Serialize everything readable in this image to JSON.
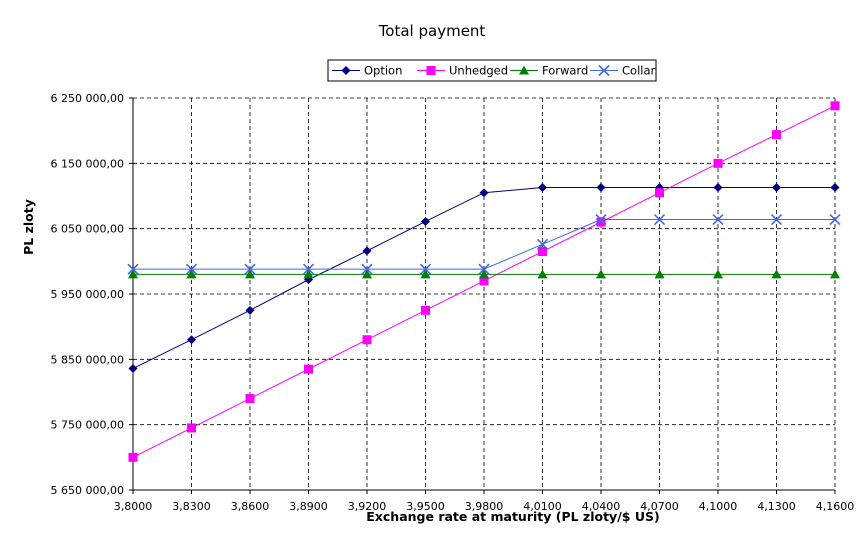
{
  "chart_data": {
    "type": "line",
    "title": "Total payment",
    "xlabel": "Exchange rate at maturity (PL zloty/$ US)",
    "ylabel": "PL zloty",
    "x": [
      "3,8000",
      "3,8300",
      "3,8600",
      "3,8900",
      "3,9200",
      "3,9500",
      "3,9800",
      "4,0100",
      "4,0400",
      "4,0700",
      "4,1000",
      "4,1300",
      "4,1600"
    ],
    "ylim": [
      5650000,
      6250000
    ],
    "yticks": [
      5650000,
      5750000,
      5850000,
      5950000,
      6050000,
      6150000,
      6250000
    ],
    "ytick_labels": [
      "5 650 000,00",
      "5 750 000,00",
      "5 850 000,00",
      "5 950 000,00",
      "6 050 000,00",
      "6 150 000,00",
      "6 250 000,00"
    ],
    "grid": true,
    "legend_position": "top-right",
    "series": [
      {
        "name": "Option",
        "color": "#000080",
        "marker": "diamond",
        "values": [
          5836000,
          5880000,
          5925000,
          5972000,
          6016000,
          6061000,
          6105000,
          6113000,
          6113000,
          6113000,
          6113000,
          6113000,
          6113000
        ]
      },
      {
        "name": "Unhedged",
        "color": "#ff00ff",
        "marker": "square",
        "values": [
          5700000,
          5745000,
          5790000,
          5835000,
          5880000,
          5925000,
          5970000,
          6015000,
          6060000,
          6105000,
          6150000,
          6194000,
          6238000
        ]
      },
      {
        "name": "Forward",
        "color": "#008000",
        "marker": "triangle",
        "values": [
          5980000,
          5980000,
          5980000,
          5980000,
          5980000,
          5980000,
          5980000,
          5980000,
          5980000,
          5980000,
          5980000,
          5980000,
          5980000
        ]
      },
      {
        "name": "Collar",
        "color": "#4169e1",
        "marker": "x",
        "values": [
          5988000,
          5988000,
          5988000,
          5988000,
          5988000,
          5988000,
          5988000,
          6026000,
          6064000,
          6064000,
          6064000,
          6064000,
          6064000
        ]
      }
    ]
  }
}
